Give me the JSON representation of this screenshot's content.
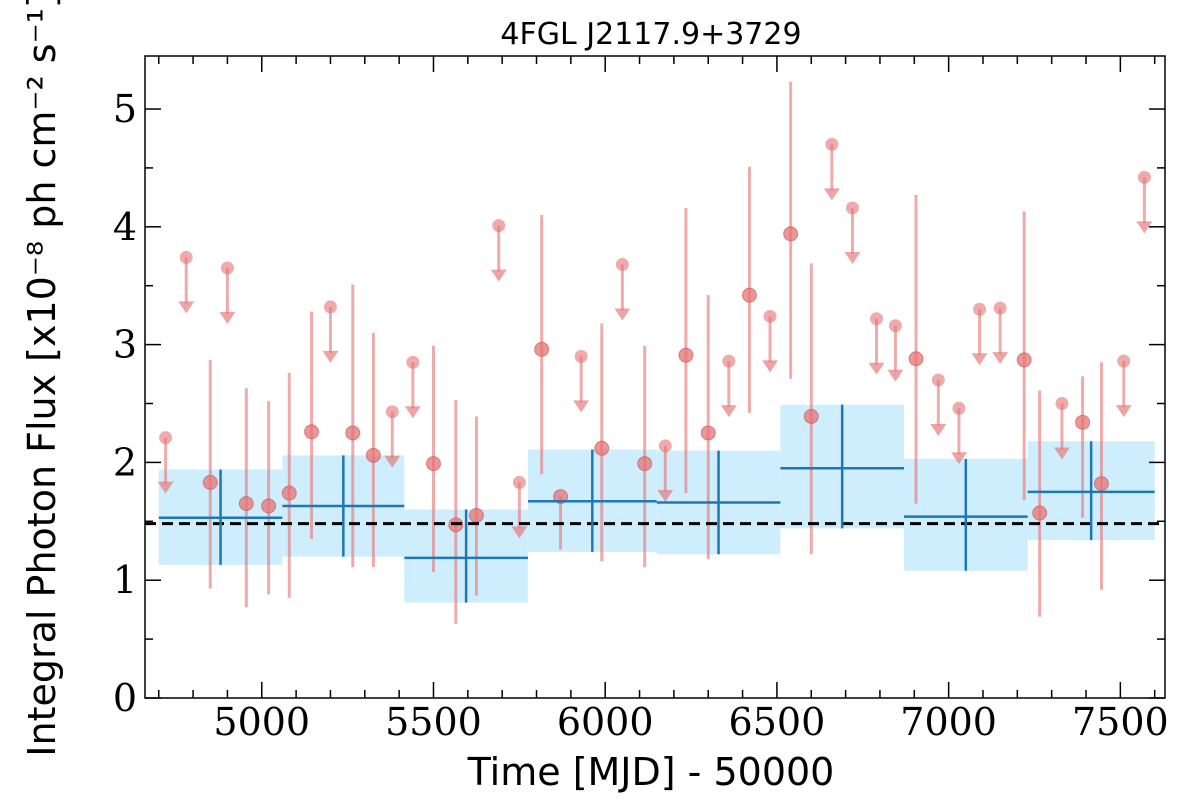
{
  "chart_data": {
    "type": "scatter",
    "title": "4FGL J2117.9+3729",
    "xlabel": "Time [MJD] - 50000",
    "ylabel": "Integral Photon Flux [x10⁻⁸ ph cm⁻² s⁻¹]",
    "xlim": [
      4660,
      7630
    ],
    "ylim": [
      0,
      5.45
    ],
    "x_ticks": [
      5000,
      5500,
      6000,
      6500,
      7000,
      7500
    ],
    "y_ticks": [
      0,
      1,
      2,
      3,
      4,
      5
    ],
    "grid": false,
    "mean_flux": 1.48,
    "series": [
      {
        "kind": "short-bin detections",
        "color": "#e57373",
        "x": [
          4850,
          4955,
          5020,
          5080,
          5145,
          5265,
          5325,
          5500,
          5565,
          5625,
          5815,
          5870,
          5990,
          6115,
          6235,
          6300,
          6420,
          6540,
          6600,
          6905,
          7220,
          7265,
          7390,
          7445
        ],
        "y": [
          1.83,
          1.65,
          1.63,
          1.74,
          2.26,
          2.25,
          2.06,
          1.99,
          1.47,
          1.55,
          2.96,
          1.71,
          2.12,
          1.99,
          2.91,
          2.25,
          3.42,
          3.94,
          2.39,
          2.88,
          2.87,
          1.57,
          2.34,
          1.82
        ],
        "y_low": [
          0.93,
          0.77,
          0.88,
          0.85,
          1.35,
          1.11,
          1.11,
          1.07,
          0.63,
          0.87,
          1.9,
          1.26,
          1.16,
          1.11,
          1.74,
          1.18,
          2.42,
          2.71,
          1.22,
          1.65,
          1.68,
          0.69,
          1.53,
          0.92
        ],
        "y_high": [
          2.87,
          2.63,
          2.52,
          2.76,
          3.28,
          3.51,
          3.1,
          2.99,
          2.53,
          2.39,
          4.1,
          1.72,
          3.18,
          2.99,
          4.16,
          3.42,
          4.51,
          5.23,
          3.69,
          4.27,
          4.13,
          2.61,
          2.73,
          2.85
        ]
      },
      {
        "kind": "short-bin upper limits",
        "color": "#e57373",
        "x": [
          4720,
          4780,
          4900,
          5200,
          5380,
          5440,
          5690,
          5750,
          5930,
          6050,
          6175,
          6360,
          6480,
          6660,
          6720,
          6790,
          6845,
          6970,
          7030,
          7090,
          7150,
          7330,
          7510,
          7570
        ],
        "y": [
          2.21,
          3.74,
          3.65,
          3.32,
          2.43,
          2.85,
          4.01,
          1.83,
          2.9,
          3.68,
          2.14,
          2.86,
          3.24,
          4.7,
          4.16,
          3.22,
          3.16,
          2.7,
          2.46,
          3.3,
          3.31,
          2.5,
          2.86,
          4.42
        ]
      },
      {
        "kind": "long-bin flux",
        "color": "#1f77b4",
        "band_color": "#cfeefd",
        "x_start": [
          4700,
          5060,
          5415,
          5775,
          6150,
          6510,
          6870,
          7230
        ],
        "x_end": [
          5060,
          5415,
          5775,
          6150,
          6510,
          6870,
          7230,
          7600
        ],
        "y": [
          1.53,
          1.63,
          1.19,
          1.67,
          1.66,
          1.95,
          1.54,
          1.75
        ],
        "y_low": [
          1.13,
          1.2,
          0.81,
          1.24,
          1.22,
          1.44,
          1.08,
          1.34
        ],
        "y_high": [
          1.94,
          2.06,
          1.6,
          2.11,
          2.1,
          2.49,
          2.03,
          2.18
        ]
      }
    ]
  }
}
